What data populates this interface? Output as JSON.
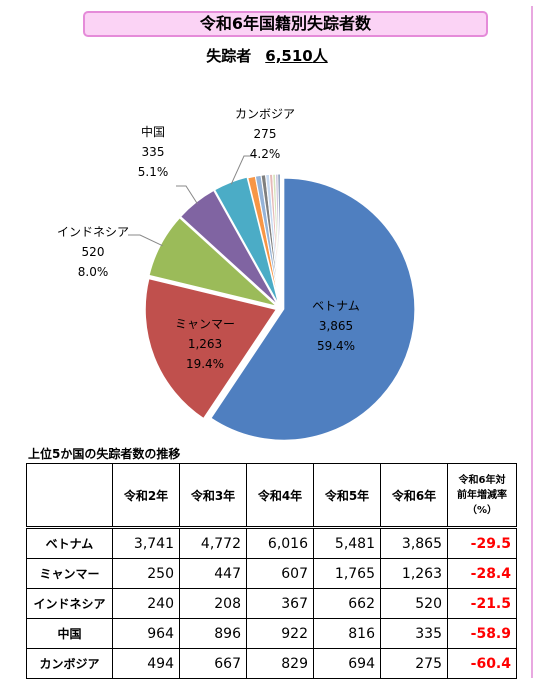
{
  "page": {
    "title": "令和6年国籍別失踪者数",
    "total_label": "失踪者",
    "total_value": "6,510",
    "total_unit": "人"
  },
  "chart_data": {
    "type": "pie",
    "title": "令和6年国籍別失踪者数",
    "slices": [
      {
        "label": "ベトナム",
        "value": 3865,
        "value_text": "3,865",
        "percent": "59.4%",
        "color": "#4f7fc0"
      },
      {
        "label": "ミャンマー",
        "value": 1263,
        "value_text": "1,263",
        "percent": "19.4%",
        "color": "#c0504d"
      },
      {
        "label": "インドネシア",
        "value": 520,
        "value_text": "520",
        "percent": "8.0%",
        "color": "#9bbb59"
      },
      {
        "label": "中国",
        "value": 335,
        "value_text": "335",
        "percent": "5.1%",
        "color": "#8064a2"
      },
      {
        "label": "カンボジア",
        "value": 275,
        "value_text": "275",
        "percent": "4.2%",
        "color": "#4bacc6"
      },
      {
        "value": 60,
        "color": "#f79646"
      },
      {
        "value": 45,
        "color": "#95b3d7"
      },
      {
        "value": 35,
        "color": "#7f7f7f"
      },
      {
        "value": 30,
        "color": "#c6d9f1"
      },
      {
        "value": 25,
        "color": "#e6b9b8"
      },
      {
        "value": 22,
        "color": "#d7e4bd"
      },
      {
        "value": 20,
        "color": "#ccc1da"
      },
      {
        "value": 15,
        "color": "#1f497d"
      }
    ],
    "total": 6510
  },
  "table": {
    "title": "上位5か国の失踪者数の推移",
    "headers": [
      "令和2年",
      "令和3年",
      "令和4年",
      "令和5年",
      "令和6年"
    ],
    "change_header": [
      "令和6年対",
      "前年増減率",
      "（%）"
    ],
    "rows": [
      {
        "country": "ベトナム",
        "values": [
          "3,741",
          "4,772",
          "6,016",
          "5,481",
          "3,865"
        ],
        "change": "-29.5"
      },
      {
        "country": "ミャンマー",
        "values": [
          "250",
          "447",
          "607",
          "1,765",
          "1,263"
        ],
        "change": "-28.4"
      },
      {
        "country": "インドネシア",
        "values": [
          "240",
          "208",
          "367",
          "662",
          "520"
        ],
        "change": "-21.5"
      },
      {
        "country": "中国",
        "values": [
          "964",
          "896",
          "922",
          "816",
          "335"
        ],
        "change": "-58.9"
      },
      {
        "country": "カンボジア",
        "values": [
          "494",
          "667",
          "829",
          "694",
          "275"
        ],
        "change": "-60.4"
      }
    ]
  }
}
